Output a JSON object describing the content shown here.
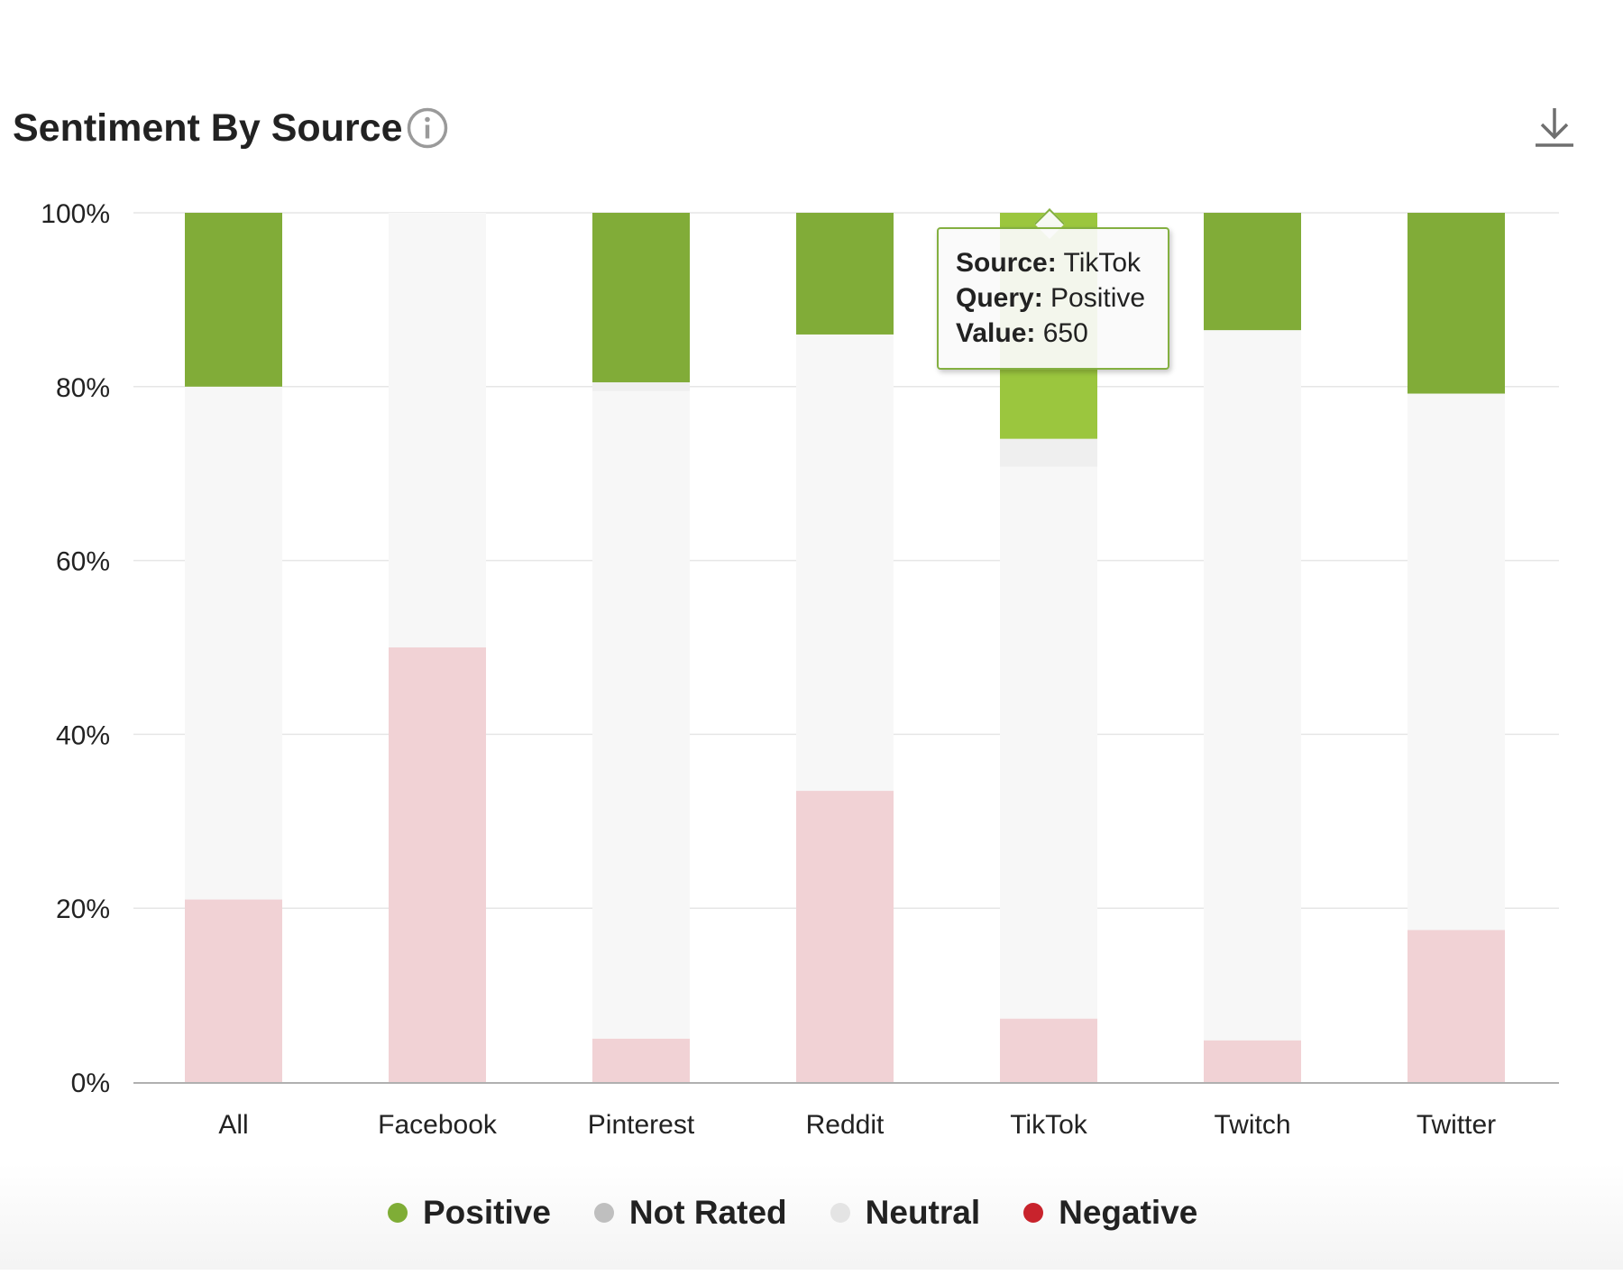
{
  "widget": {
    "title": "Sentiment By Source",
    "info_icon": "info-circle-icon",
    "download_icon": "download-icon"
  },
  "chart_data": {
    "type": "bar",
    "stacked": true,
    "normalized_percent": true,
    "title": "Sentiment By Source",
    "xlabel": "",
    "ylabel": "",
    "ylim": [
      0,
      100
    ],
    "y_ticks": [
      "0%",
      "20%",
      "40%",
      "60%",
      "80%",
      "100%"
    ],
    "categories": [
      "All",
      "Facebook",
      "Pinterest",
      "Reddit",
      "TikTok",
      "Twitch",
      "Twitter"
    ],
    "series": [
      {
        "name": "Negative",
        "color": "#f1d2d5",
        "values": [
          21,
          50,
          5,
          33.5,
          7.3,
          4.8,
          17.5
        ]
      },
      {
        "name": "Neutral",
        "color": "#f7f7f7",
        "values": [
          59,
          50,
          74.5,
          52.5,
          63.5,
          81.7,
          61.7
        ]
      },
      {
        "name": "Not Rated",
        "color": "#efefef",
        "values": [
          0,
          0,
          1,
          0,
          3.2,
          0,
          0
        ]
      },
      {
        "name": "Positive",
        "color": "#81ac38",
        "values": [
          20,
          0,
          19.5,
          14,
          26,
          13.5,
          20.8
        ]
      }
    ],
    "grid": true,
    "legend_position": "bottom",
    "highlighted": {
      "category": "TikTok",
      "series": "Positive",
      "color": "#9bc63e"
    }
  },
  "tooltip": {
    "source_key": "Source:",
    "source_value": "TikTok",
    "query_key": "Query:",
    "query_value": "Positive",
    "value_key": "Value:",
    "value_value": "650"
  },
  "legend": [
    {
      "label": "Positive",
      "color": "#7fad36"
    },
    {
      "label": "Not Rated",
      "color": "#bfbfbf"
    },
    {
      "label": "Neutral",
      "color": "#e4e4e4"
    },
    {
      "label": "Negative",
      "color": "#c8232c"
    }
  ]
}
